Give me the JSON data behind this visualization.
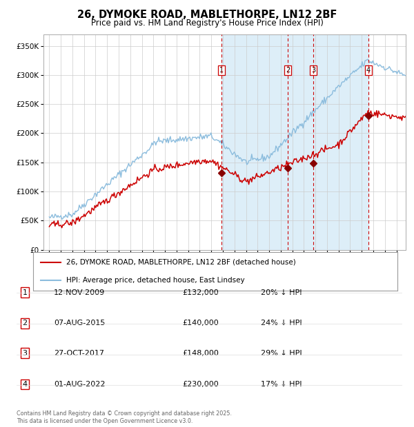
{
  "title": "26, DYMOKE ROAD, MABLETHORPE, LN12 2BF",
  "subtitle": "Price paid vs. HM Land Registry's House Price Index (HPI)",
  "legend_line1": "26, DYMOKE ROAD, MABLETHORPE, LN12 2BF (detached house)",
  "legend_line2": "HPI: Average price, detached house, East Lindsey",
  "footer": "Contains HM Land Registry data © Crown copyright and database right 2025.\nThis data is licensed under the Open Government Licence v3.0.",
  "transactions": [
    {
      "num": 1,
      "date": "12-NOV-2009",
      "price": 132000,
      "hpi_pct": "20% ↓ HPI",
      "x_year": 2009.87
    },
    {
      "num": 2,
      "date": "07-AUG-2015",
      "price": 140000,
      "hpi_pct": "24% ↓ HPI",
      "x_year": 2015.6
    },
    {
      "num": 3,
      "date": "27-OCT-2017",
      "price": 148000,
      "hpi_pct": "29% ↓ HPI",
      "x_year": 2017.82
    },
    {
      "num": 4,
      "date": "01-AUG-2022",
      "price": 230000,
      "hpi_pct": "17% ↓ HPI",
      "x_year": 2022.58
    }
  ],
  "trans_prices": [
    132000,
    140000,
    148000,
    230000
  ],
  "hpi_color": "#8BBCDD",
  "price_color": "#CC0000",
  "shade_color": "#DDEEF8",
  "vline_color": "#CC0000",
  "marker_color": "#880000",
  "background_color": "#FFFFFF",
  "plot_bg_color": "#FFFFFF",
  "ylim": [
    0,
    370000
  ],
  "xlim_start": 1994.5,
  "xlim_end": 2025.8,
  "yticks": [
    0,
    50000,
    100000,
    150000,
    200000,
    250000,
    300000,
    350000
  ],
  "ylabels": [
    "£0",
    "£50K",
    "£100K",
    "£150K",
    "£200K",
    "£250K",
    "£300K",
    "£350K"
  ]
}
